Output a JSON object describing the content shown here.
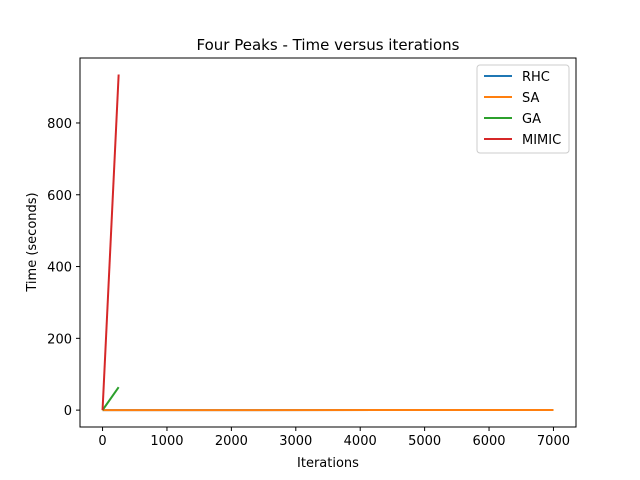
{
  "chart_data": {
    "type": "line",
    "title": "Four Peaks - Time versus iterations",
    "xlabel": "Iterations",
    "ylabel": "Time (seconds)",
    "xlim": [
      -350,
      7350
    ],
    "ylim": [
      -47,
      981
    ],
    "xticks": [
      0,
      1000,
      2000,
      3000,
      4000,
      5000,
      6000,
      7000
    ],
    "yticks": [
      0,
      200,
      400,
      600,
      800
    ],
    "grid": false,
    "legend_position": "top-right",
    "series": [
      {
        "name": "RHC",
        "color": "#1f77b4",
        "x": [
          0,
          7000
        ],
        "y": [
          0,
          0.3
        ]
      },
      {
        "name": "SA",
        "color": "#ff7f0e",
        "x": [
          0,
          7000
        ],
        "y": [
          0,
          0.3
        ]
      },
      {
        "name": "GA",
        "color": "#2ca02c",
        "x": [
          0,
          250
        ],
        "y": [
          0,
          64
        ]
      },
      {
        "name": "MIMIC",
        "color": "#d62728",
        "x": [
          0,
          250
        ],
        "y": [
          0,
          935
        ]
      }
    ]
  }
}
